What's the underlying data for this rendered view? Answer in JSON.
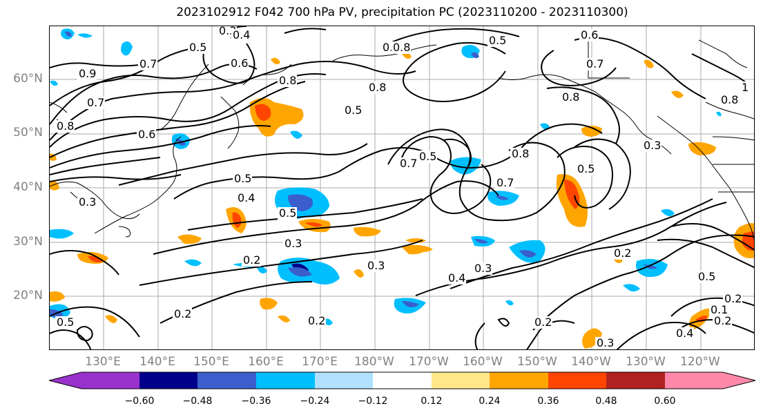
{
  "title": "2023102912 F042 700 hPa PV, precipitation PC (2023110200 - 2023110300)",
  "map": {
    "lat_labels": [
      "60°N",
      "50°N",
      "40°N",
      "30°N",
      "20°N"
    ],
    "lon_labels": [
      "130°E",
      "140°E",
      "150°E",
      "160°E",
      "170°E",
      "180°W",
      "170°W",
      "160°W",
      "150°W",
      "140°W",
      "130°W",
      "120°W"
    ],
    "contour_labels": [
      "0.3",
      "0.4",
      "0.5",
      "0.5",
      "0.8",
      "0.5",
      "0.7",
      "0.6",
      "0.8",
      "0.6",
      "0.7",
      "0.9",
      "0.7",
      "0.8",
      "0.6",
      "0.8",
      "0.5",
      "0.8",
      "0.5",
      "0.7",
      "0.5",
      "0.8",
      "0.7",
      "0.5",
      "0.3",
      "0.4",
      "0.3",
      "0.5",
      "0.3",
      "0.2",
      "0.3",
      "0.4",
      "0.2",
      "0.2",
      "0.2",
      "0.2",
      "0.3",
      "0.5",
      "0.2",
      "0.4",
      "0.1",
      "0.2",
      "0.3",
      "0.5",
      "1",
      "0.8"
    ]
  },
  "colorbar": {
    "tick_labels": [
      "−0.60",
      "−0.48",
      "−0.36",
      "−0.24",
      "−0.12",
      "0.12",
      "0.24",
      "0.36",
      "0.48",
      "0.60"
    ],
    "colors": [
      "#9932cc",
      "#00008b",
      "#3a5fcd",
      "#00bfff",
      "#b0e2ff",
      "#ffffff",
      "#ffe88c",
      "#ffa500",
      "#ff4500",
      "#b22222",
      "#ff88aa"
    ]
  }
}
